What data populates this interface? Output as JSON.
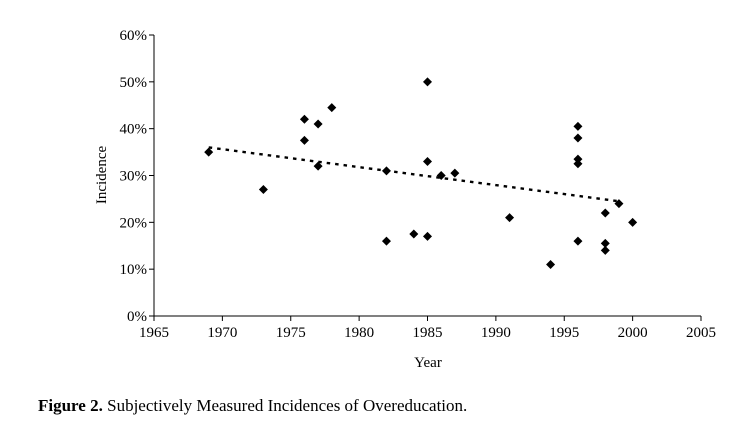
{
  "chart_data": {
    "type": "scatter",
    "xlabel": "Year",
    "ylabel": "Incidence",
    "xlim": [
      1965,
      2005
    ],
    "ylim": [
      0,
      60
    ],
    "x_ticks": [
      1965,
      1970,
      1975,
      1980,
      1985,
      1990,
      1995,
      2000,
      2005
    ],
    "y_ticks": [
      0,
      10,
      20,
      30,
      40,
      50,
      60
    ],
    "y_tick_labels": [
      "0%",
      "10%",
      "20%",
      "30%",
      "40%",
      "50%",
      "60%"
    ],
    "grid": false,
    "legend": "none",
    "series": [
      {
        "name": "Incidence",
        "marker": "diamond",
        "points": [
          [
            1969,
            35
          ],
          [
            1973,
            27
          ],
          [
            1976,
            42
          ],
          [
            1976,
            37.5
          ],
          [
            1977,
            41
          ],
          [
            1977,
            32
          ],
          [
            1978,
            44.5
          ],
          [
            1982,
            31
          ],
          [
            1982,
            16
          ],
          [
            1984,
            17.5
          ],
          [
            1985,
            50
          ],
          [
            1985,
            33
          ],
          [
            1985,
            17
          ],
          [
            1986,
            30
          ],
          [
            1987,
            30.5
          ],
          [
            1991,
            21
          ],
          [
            1994,
            11
          ],
          [
            1996,
            40.5
          ],
          [
            1996,
            38
          ],
          [
            1996,
            33.5
          ],
          [
            1996,
            32.5
          ],
          [
            1996,
            16
          ],
          [
            1998,
            22
          ],
          [
            1998,
            15.5
          ],
          [
            1998,
            14
          ],
          [
            1999,
            24
          ],
          [
            2000,
            20
          ]
        ]
      }
    ],
    "trendline": {
      "style": "dotted",
      "x": [
        1969,
        1999
      ],
      "y": [
        36,
        24.5
      ]
    }
  },
  "caption": {
    "label": "Figure 2.",
    "text": "Subjectively Measured Incidences of Overeducation."
  }
}
